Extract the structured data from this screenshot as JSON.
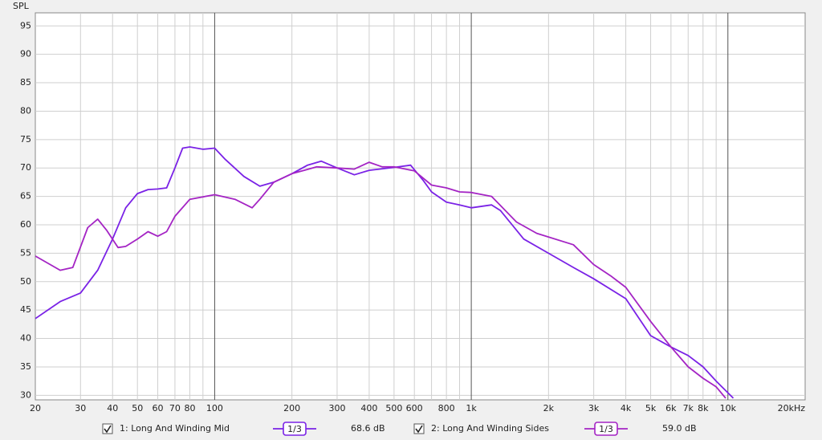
{
  "chart_data": {
    "type": "line",
    "y_label": "SPL",
    "log_x": true,
    "grid": true,
    "xlim": [
      20,
      20000
    ],
    "ylim": [
      29.2,
      97.3
    ],
    "yticks": [
      30,
      35,
      40,
      45,
      50,
      55,
      60,
      65,
      70,
      75,
      80,
      85,
      90,
      95
    ],
    "xticks": [
      20,
      30,
      40,
      50,
      60,
      70,
      80,
      100,
      200,
      300,
      400,
      500,
      600,
      800,
      {
        "value": 1000,
        "label": "1k"
      },
      {
        "value": 2000,
        "label": "2k"
      },
      {
        "value": 3000,
        "label": "3k"
      },
      {
        "value": 4000,
        "label": "4k"
      },
      {
        "value": 5000,
        "label": "5k"
      },
      {
        "value": 6000,
        "label": "6k"
      },
      {
        "value": 7000,
        "label": "7k"
      },
      {
        "value": 8000,
        "label": "8k"
      },
      {
        "value": 10000,
        "label": "10k"
      },
      {
        "value": 20000,
        "label": "20kHz"
      }
    ],
    "xminor": [
      90,
      700,
      900,
      9000
    ],
    "xmajor": [
      100,
      1000,
      10000
    ],
    "series": [
      {
        "name": "1: Long And Winding Mid",
        "color": "#7a22e6",
        "smoothing": "1/3",
        "level": "68.6 dB",
        "x": [
          20,
          25,
          30,
          35,
          40,
          45,
          50,
          55,
          60,
          65,
          70,
          75,
          80,
          90,
          100,
          110,
          130,
          150,
          170,
          200,
          230,
          260,
          300,
          350,
          400,
          500,
          580,
          650,
          700,
          800,
          900,
          1000,
          1200,
          1300,
          1600,
          2000,
          2500,
          3000,
          4000,
          5000,
          6000,
          7000,
          8000,
          9000,
          10500
        ],
        "values": [
          43.5,
          46.5,
          48,
          52,
          57.5,
          63,
          65.5,
          66.2,
          66.3,
          66.5,
          70,
          73.5,
          73.7,
          73.3,
          73.5,
          71.5,
          68.5,
          66.8,
          67.5,
          69,
          70.5,
          71.2,
          70,
          68.8,
          69.6,
          70.1,
          70.5,
          67.8,
          65.8,
          64,
          63.5,
          63,
          63.5,
          62.5,
          57.5,
          55,
          52.5,
          50.5,
          47,
          40.5,
          38.5,
          37,
          35,
          32.5,
          29.5
        ]
      },
      {
        "name": "2: Long And Winding Sides",
        "color": "#a424c4",
        "smoothing": "1/3",
        "level": "59.0 dB",
        "x": [
          20,
          25,
          28,
          32,
          35,
          38,
          42,
          45,
          50,
          55,
          60,
          65,
          70,
          80,
          100,
          120,
          140,
          150,
          170,
          200,
          250,
          300,
          350,
          400,
          450,
          500,
          600,
          700,
          800,
          900,
          1000,
          1200,
          1500,
          1800,
          2500,
          3000,
          3500,
          4000,
          5000,
          6000,
          7000,
          8000,
          9000,
          9800
        ],
        "values": [
          54.5,
          52,
          52.5,
          59.5,
          61,
          59,
          56,
          56.2,
          57.5,
          58.8,
          58,
          58.8,
          61.5,
          64.5,
          65.3,
          64.5,
          63,
          64.5,
          67.5,
          69,
          70.2,
          70,
          69.8,
          71,
          70.2,
          70.2,
          69.5,
          67,
          66.5,
          65.8,
          65.7,
          65,
          60.5,
          58.5,
          56.5,
          53,
          51,
          49,
          43,
          38.5,
          35,
          33,
          31.5,
          29.5
        ]
      }
    ]
  }
}
